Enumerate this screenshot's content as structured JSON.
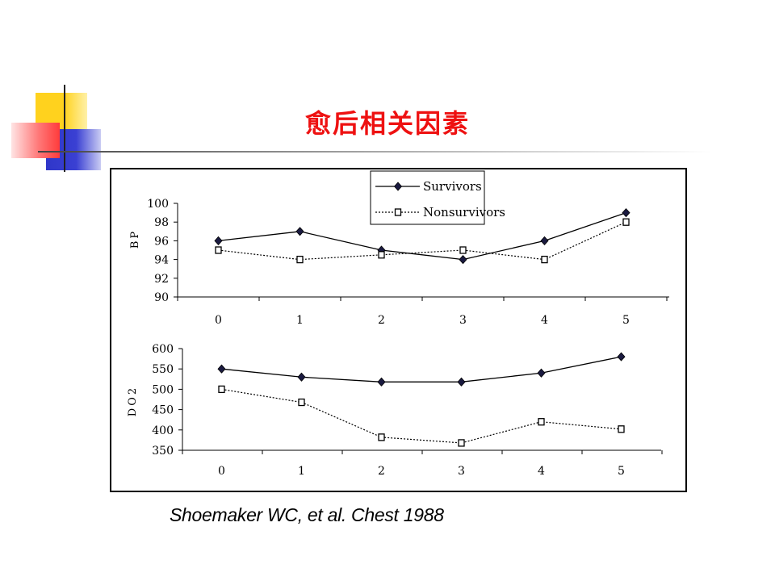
{
  "slide": {
    "title": "愈后相关因素",
    "citation": "Shoemaker WC, et al.  Chest 1988"
  },
  "chart_data": [
    {
      "type": "line",
      "ylabel": "BP",
      "categories": [
        "0",
        "1",
        "2",
        "3",
        "4",
        "5"
      ],
      "ylim": [
        90,
        100
      ],
      "yticks": [
        "90",
        "92",
        "94",
        "96",
        "98",
        "100"
      ],
      "legend": "top-center",
      "series": [
        {
          "name": "Survivors",
          "style": "solid",
          "marker": "diamond",
          "values": [
            96,
            97,
            95,
            94,
            96,
            99
          ]
        },
        {
          "name": "Nonsurvivors",
          "style": "dotted",
          "marker": "square",
          "values": [
            95,
            94,
            94.5,
            95,
            94,
            98
          ]
        }
      ]
    },
    {
      "type": "line",
      "ylabel": "DO2",
      "categories": [
        "0",
        "1",
        "2",
        "3",
        "4",
        "5"
      ],
      "ylim": [
        350,
        600
      ],
      "yticks": [
        "350",
        "400",
        "450",
        "500",
        "550",
        "600"
      ],
      "series": [
        {
          "style": "solid",
          "marker": "diamond",
          "values": [
            550,
            530,
            518,
            518,
            540,
            580
          ]
        },
        {
          "style": "dotted",
          "marker": "square",
          "values": [
            500,
            468,
            382,
            368,
            420,
            402
          ]
        }
      ]
    }
  ]
}
